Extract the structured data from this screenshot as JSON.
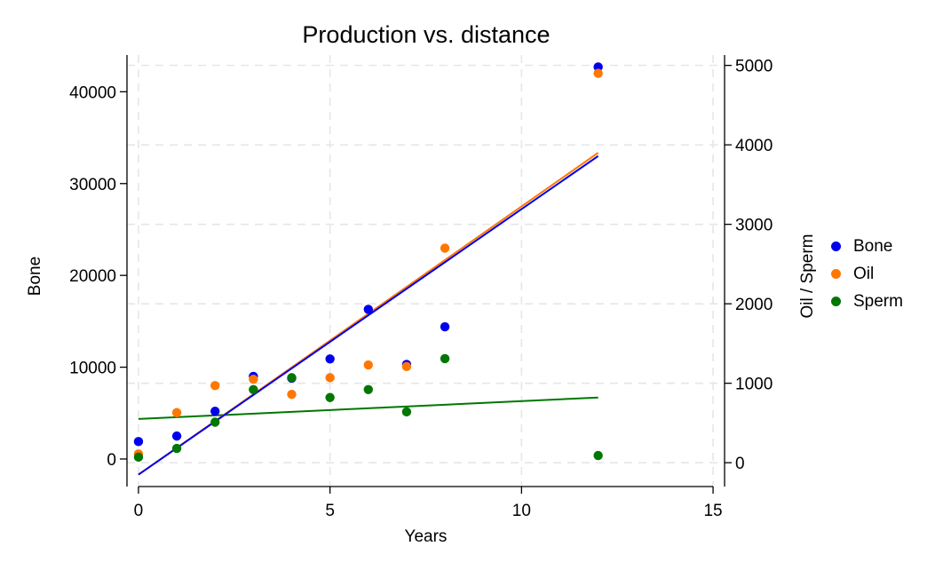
{
  "chart_data": {
    "type": "scatter",
    "title": "Production vs. distance",
    "xlabel": "Years",
    "ylabel_left": "Bone",
    "ylabel_right": "Oil / Sperm",
    "xlim": [
      -0.3,
      15.3
    ],
    "ylim_left": [
      -3000,
      44000
    ],
    "ylim_right": [
      -300,
      5130
    ],
    "x_ticks": [
      0,
      5,
      10,
      15
    ],
    "y_ticks_left": [
      0,
      10000,
      20000,
      30000,
      40000
    ],
    "y_ticks_right": [
      0,
      1000,
      2000,
      3000,
      4000,
      5000
    ],
    "grid": true,
    "legend_position": "right",
    "series": [
      {
        "name": "Bone",
        "axis": "left",
        "color": "#0000ee",
        "x": [
          0,
          1,
          2,
          3,
          4,
          5,
          6,
          7,
          8,
          12
        ],
        "y": [
          1900,
          2500,
          5200,
          9000,
          8800,
          10900,
          16300,
          10300,
          14400,
          42700
        ],
        "fit": {
          "x": [
            0,
            12
          ],
          "y": [
            -1700,
            33000
          ]
        }
      },
      {
        "name": "Oil",
        "axis": "right",
        "color": "#ff7700",
        "x": [
          0,
          1,
          2,
          3,
          4,
          5,
          6,
          7,
          8,
          12
        ],
        "y": [
          110,
          630,
          970,
          1050,
          860,
          1070,
          1230,
          1210,
          2700,
          4900
        ],
        "fit": {
          "x": [
            0,
            12
          ],
          "y": [
            -150,
            3900
          ]
        }
      },
      {
        "name": "Sperm",
        "axis": "right",
        "color": "#007700",
        "x": [
          0,
          1,
          2,
          3,
          4,
          5,
          6,
          7,
          8,
          12
        ],
        "y": [
          70,
          180,
          510,
          920,
          1070,
          820,
          920,
          640,
          1310,
          90
        ],
        "fit": {
          "x": [
            0,
            12
          ],
          "y": [
            550,
            820
          ]
        }
      }
    ]
  }
}
